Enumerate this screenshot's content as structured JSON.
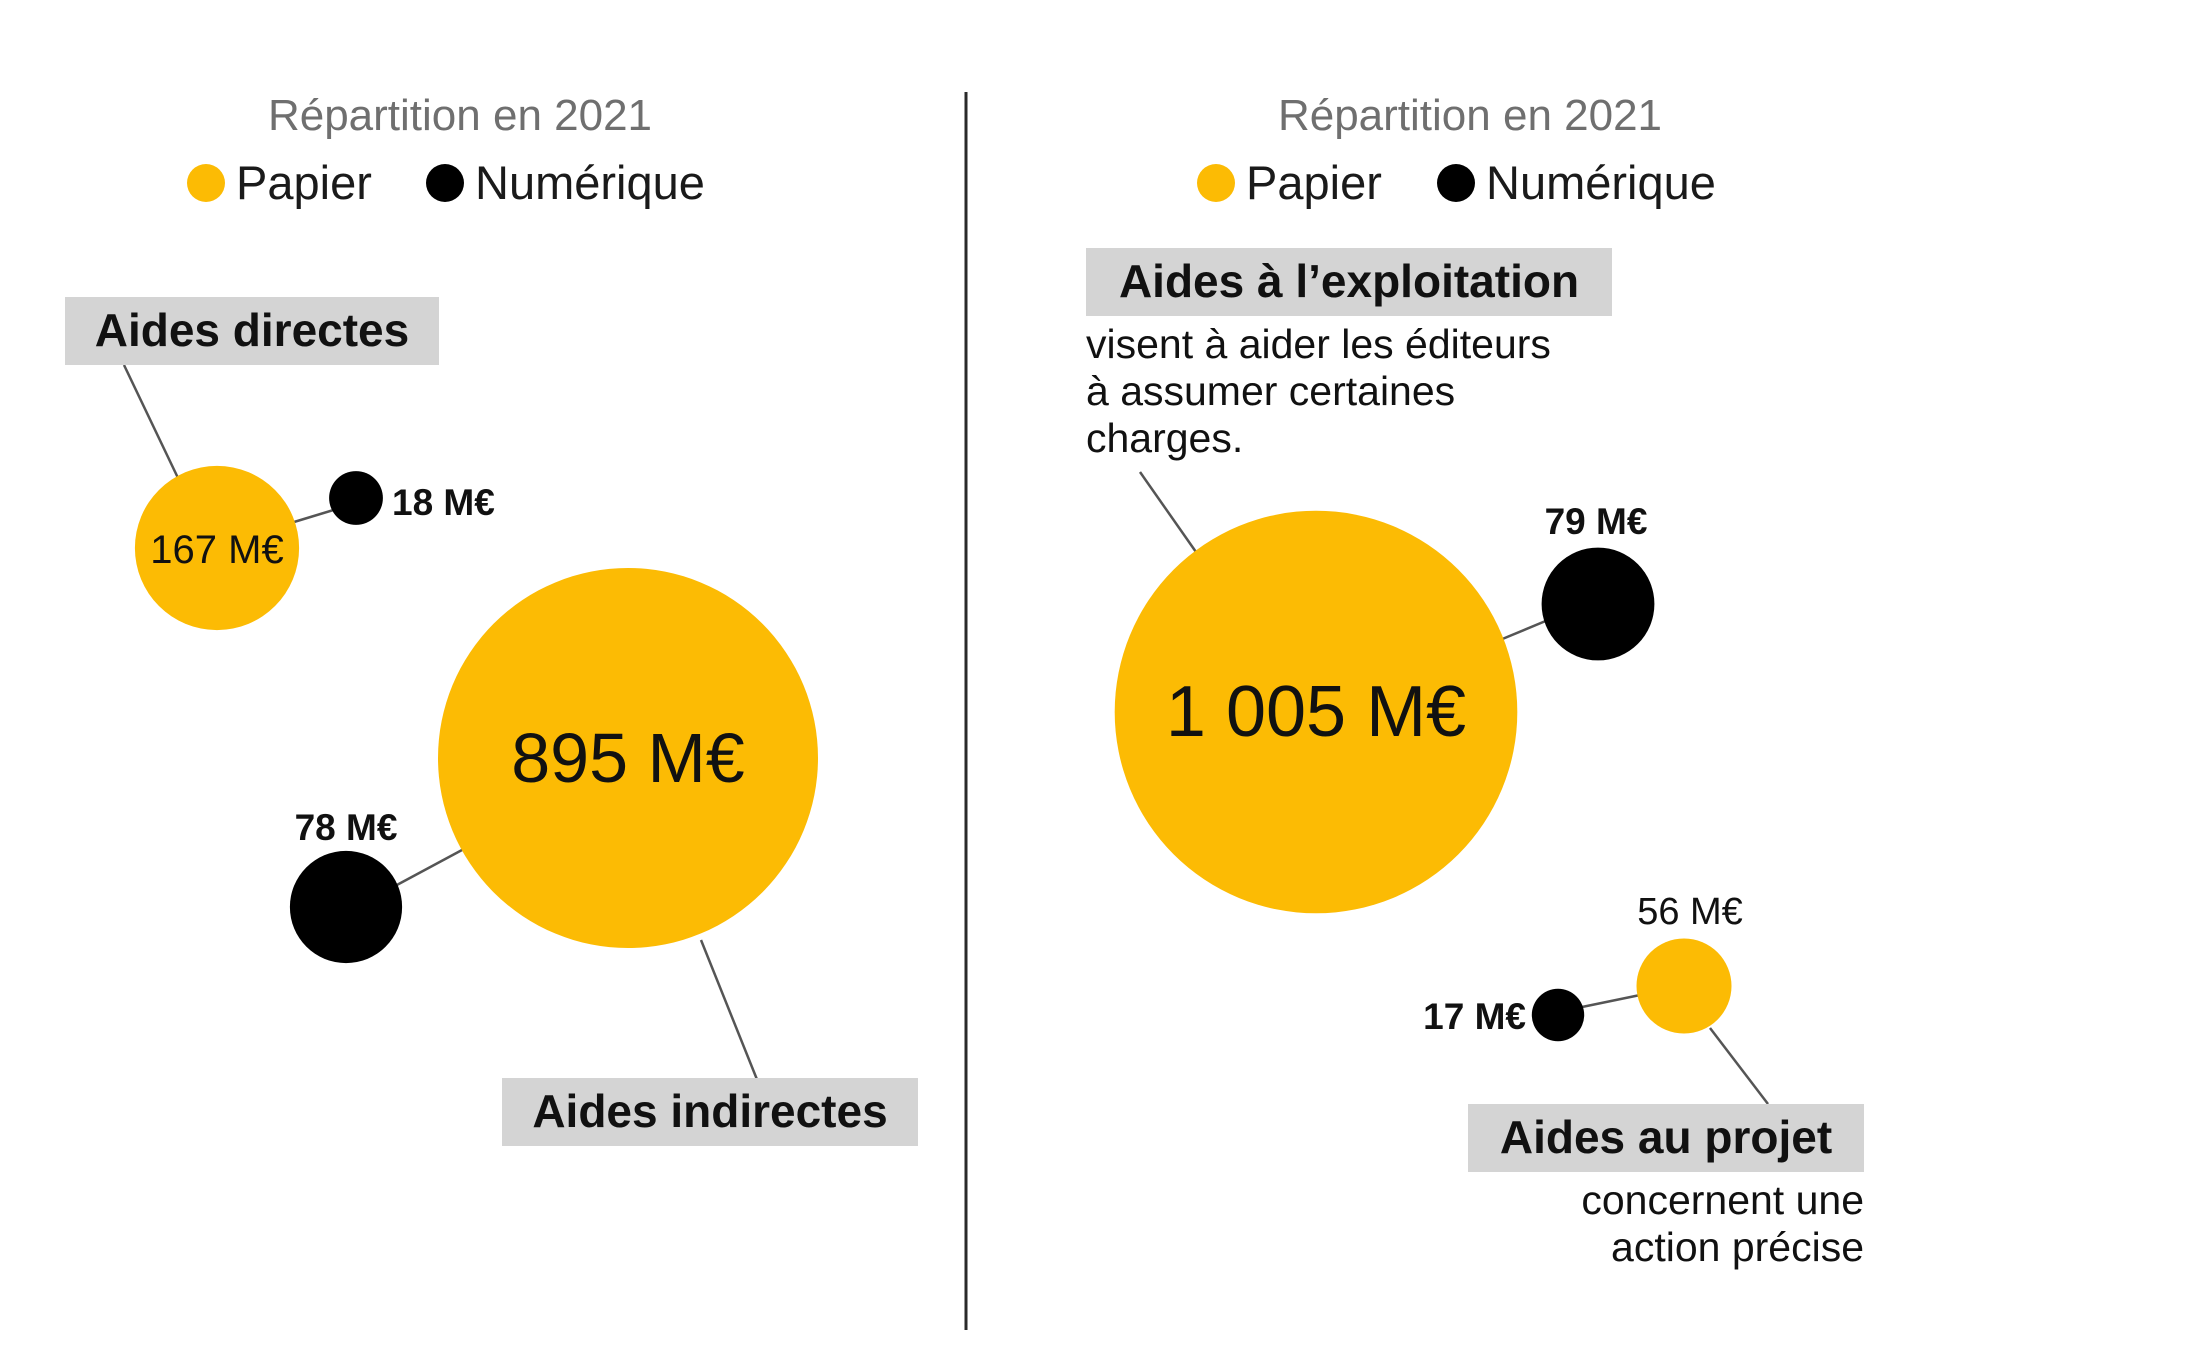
{
  "colors": {
    "papier": "#FCBB04",
    "numerique": "#000000",
    "tag_background": "#D4D4D4",
    "divider": "#2A2A2A"
  },
  "chart_data": [
    {
      "type": "bubble",
      "title": "Répartition en 2021",
      "legend": {
        "placement": "top-center",
        "entries": [
          {
            "label": "Papier",
            "color": "#FCBB04"
          },
          {
            "label": "Numérique",
            "color": "#000000"
          }
        ]
      },
      "groups": [
        {
          "label": "Aides directes",
          "description": "",
          "papier": {
            "value": 167,
            "label": "167 M€"
          },
          "numerique": {
            "value": 18,
            "label": "18 M€"
          }
        },
        {
          "label": "Aides indirectes",
          "description": "",
          "papier": {
            "value": 895,
            "label": "895 M€"
          },
          "numerique": {
            "value": 78,
            "label": "78 M€"
          }
        }
      ]
    },
    {
      "type": "bubble",
      "title": "Répartition en 2021",
      "legend": {
        "placement": "top-center",
        "entries": [
          {
            "label": "Papier",
            "color": "#FCBB04"
          },
          {
            "label": "Numérique",
            "color": "#000000"
          }
        ]
      },
      "groups": [
        {
          "label": "Aides à l’exploitation",
          "description": [
            "visent à aider les éditeurs",
            "à assumer certaines",
            "charges."
          ],
          "papier": {
            "value": 1005,
            "label": "1 005 M€"
          },
          "numerique": {
            "value": 79,
            "label": "79 M€"
          }
        },
        {
          "label": "Aides au projet",
          "description": [
            "concernent une",
            "action précise"
          ],
          "papier": {
            "value": 56,
            "label": "56 M€"
          },
          "numerique": {
            "value": 17,
            "label": "17 M€"
          }
        }
      ]
    }
  ]
}
